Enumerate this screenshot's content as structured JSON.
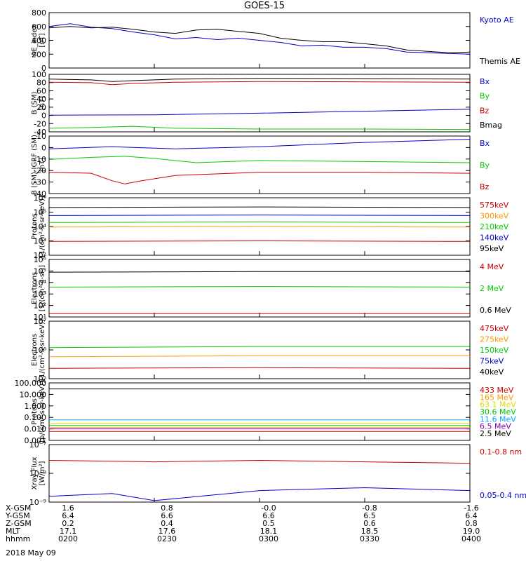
{
  "title": "GOES-15",
  "date_label": "2018 May 09",
  "ephemeris": {
    "rows": [
      {
        "label": "X-GSM",
        "values": [
          "1.6",
          "0.8",
          "-0.0",
          "-0.8",
          "-1.6"
        ]
      },
      {
        "label": "Y-GSM",
        "values": [
          "6.4",
          "6.6",
          "6.6",
          "6.5",
          "6.4"
        ]
      },
      {
        "label": "Z-GSM",
        "values": [
          "0.2",
          "0.4",
          "0.5",
          "0.6",
          "0.8"
        ]
      },
      {
        "label": "MLT",
        "values": [
          "17.1",
          "17.6",
          "18.1",
          "18.5",
          "19.0"
        ]
      },
      {
        "label": "hhmm",
        "values": [
          "0200",
          "0230",
          "0300",
          "0330",
          "0400"
        ]
      }
    ]
  },
  "chart_data": [
    {
      "type": "line",
      "ylabel": "AE_index",
      "yunit": "[nT]",
      "ylim": [
        0,
        800
      ],
      "scale": "linear",
      "yticks": [
        "0",
        "200",
        "400",
        "600",
        "800"
      ],
      "x": [
        "0200",
        "0230",
        "0300",
        "0330",
        "0400"
      ],
      "series": [
        {
          "name": "Kyoto AE",
          "color": "#0000cc",
          "points": [
            [
              0,
              600
            ],
            [
              0.05,
              640
            ],
            [
              0.1,
              590
            ],
            [
              0.15,
              570
            ],
            [
              0.2,
              520
            ],
            [
              0.25,
              480
            ],
            [
              0.3,
              420
            ],
            [
              0.35,
              440
            ],
            [
              0.4,
              410
            ],
            [
              0.45,
              430
            ],
            [
              0.5,
              400
            ],
            [
              0.55,
              370
            ],
            [
              0.6,
              320
            ],
            [
              0.65,
              330
            ],
            [
              0.7,
              300
            ],
            [
              0.75,
              300
            ],
            [
              0.8,
              280
            ],
            [
              0.85,
              230
            ],
            [
              0.9,
              220
            ],
            [
              0.95,
              210
            ],
            [
              1,
              200
            ]
          ]
        },
        {
          "name": "Themis AE",
          "color": "#000000",
          "points": [
            [
              0,
              580
            ],
            [
              0.05,
              600
            ],
            [
              0.1,
              580
            ],
            [
              0.15,
              590
            ],
            [
              0.2,
              560
            ],
            [
              0.25,
              520
            ],
            [
              0.3,
              500
            ],
            [
              0.35,
              550
            ],
            [
              0.4,
              560
            ],
            [
              0.45,
              530
            ],
            [
              0.5,
              500
            ],
            [
              0.55,
              430
            ],
            [
              0.6,
              400
            ],
            [
              0.65,
              380
            ],
            [
              0.7,
              380
            ],
            [
              0.75,
              350
            ],
            [
              0.8,
              320
            ],
            [
              0.85,
              260
            ],
            [
              0.9,
              240
            ],
            [
              0.95,
              220
            ],
            [
              1,
              230
            ]
          ]
        }
      ]
    },
    {
      "type": "line",
      "ylabel": "B (SM)",
      "yunit": "[nT]",
      "ylim": [
        -45,
        100
      ],
      "scale": "linear",
      "yticks": [
        "-40",
        "-20",
        "0",
        "20",
        "40",
        "60",
        "80",
        "100"
      ],
      "x": [
        "0200",
        "0230",
        "0300",
        "0330",
        "0400"
      ],
      "series": [
        {
          "name": "Bx",
          "color": "#0000cc",
          "points": [
            [
              0,
              -3
            ],
            [
              0.25,
              -2
            ],
            [
              0.5,
              2
            ],
            [
              0.75,
              7
            ],
            [
              1,
              12
            ]
          ]
        },
        {
          "name": "By",
          "color": "#00cc00",
          "points": [
            [
              0,
              -36
            ],
            [
              0.1,
              -34
            ],
            [
              0.2,
              -31
            ],
            [
              0.3,
              -36
            ],
            [
              0.5,
              -38
            ],
            [
              0.75,
              -38
            ],
            [
              1,
              -39
            ]
          ]
        },
        {
          "name": "Bz",
          "color": "#cc0000",
          "points": [
            [
              0,
              80
            ],
            [
              0.1,
              79
            ],
            [
              0.15,
              74
            ],
            [
              0.2,
              77
            ],
            [
              0.3,
              80
            ],
            [
              0.5,
              82
            ],
            [
              0.75,
              81
            ],
            [
              1,
              80
            ]
          ]
        },
        {
          "name": "Bmag",
          "color": "#000000",
          "points": [
            [
              0,
              88
            ],
            [
              0.1,
              86
            ],
            [
              0.15,
              82
            ],
            [
              0.2,
              84
            ],
            [
              0.3,
              88
            ],
            [
              0.5,
              90
            ],
            [
              0.75,
              89
            ],
            [
              1,
              88
            ]
          ]
        }
      ]
    },
    {
      "type": "line",
      "ylabel": "B (SM)-IGRF (SM)",
      "yunit": "[nT]",
      "ylim": [
        -42,
        12
      ],
      "scale": "linear",
      "yticks": [
        "-40",
        "-30",
        "-20",
        "-10",
        "0",
        "10"
      ],
      "x": [
        "0200",
        "0230",
        "0300",
        "0330",
        "0400"
      ],
      "series": [
        {
          "name": "Bx",
          "color": "#0000cc",
          "points": [
            [
              0,
              0
            ],
            [
              0.15,
              2
            ],
            [
              0.3,
              0
            ],
            [
              0.5,
              2
            ],
            [
              0.75,
              6
            ],
            [
              1,
              9
            ]
          ]
        },
        {
          "name": "By",
          "color": "#00cc00",
          "points": [
            [
              0,
              -10
            ],
            [
              0.1,
              -8
            ],
            [
              0.18,
              -7
            ],
            [
              0.25,
              -9
            ],
            [
              0.35,
              -13
            ],
            [
              0.5,
              -11
            ],
            [
              0.75,
              -12
            ],
            [
              1,
              -13
            ]
          ]
        },
        {
          "name": "Bz",
          "color": "#cc0000",
          "points": [
            [
              0,
              -22
            ],
            [
              0.1,
              -23
            ],
            [
              0.15,
              -30
            ],
            [
              0.18,
              -33
            ],
            [
              0.22,
              -30
            ],
            [
              0.3,
              -25
            ],
            [
              0.5,
              -22
            ],
            [
              0.75,
              -22
            ],
            [
              1,
              -23
            ]
          ]
        }
      ]
    },
    {
      "type": "line",
      "ylabel": "Protons",
      "yunit": "[1/(cm²-s-sr-keV)]",
      "ylim": [
        1,
        6
      ],
      "scale": "log10",
      "yticks": [
        "10²",
        "10³",
        "10⁴",
        "10⁵",
        "10⁶"
      ],
      "x": [
        "0200",
        "0230",
        "0300",
        "0330",
        "0400"
      ],
      "series": [
        {
          "name": "575keV",
          "color": "#cc0000",
          "points": [
            [
              0,
              2.2
            ],
            [
              0.5,
              2.25
            ],
            [
              1,
              2.2
            ]
          ]
        },
        {
          "name": "300keV",
          "color": "#ff9900",
          "points": [
            [
              0,
              3.45
            ],
            [
              0.5,
              3.5
            ],
            [
              1,
              3.45
            ]
          ]
        },
        {
          "name": "210keV",
          "color": "#00cc00",
          "points": [
            [
              0,
              3.85
            ],
            [
              0.5,
              3.9
            ],
            [
              1,
              3.85
            ]
          ]
        },
        {
          "name": "140keV",
          "color": "#0000cc",
          "points": [
            [
              0,
              4.45
            ],
            [
              0.5,
              4.5
            ],
            [
              1,
              4.45
            ]
          ]
        },
        {
          "name": "95keV",
          "color": "#000000",
          "points": [
            [
              0,
              5.15
            ],
            [
              0.5,
              5.2
            ],
            [
              1,
              5.15
            ]
          ]
        }
      ]
    },
    {
      "type": "line",
      "ylabel": "Electrons",
      "yunit": "[1/(cm²-s-sr)]",
      "ylim": [
        0.8,
        6
      ],
      "scale": "log10",
      "yticks": [
        "10¹",
        "10²",
        "10³",
        "10⁴",
        "10⁵",
        "10⁶"
      ],
      "x": [
        "0200",
        "0230",
        "0300",
        "0330",
        "0400"
      ],
      "series": [
        {
          "name": "4 MeV",
          "color": "#cc0000",
          "points": [
            [
              0,
              1.1
            ],
            [
              0.5,
              1.1
            ],
            [
              1,
              1.1
            ]
          ]
        },
        {
          "name": "2 MeV",
          "color": "#00cc00",
          "points": [
            [
              0,
              3.5
            ],
            [
              0.5,
              3.55
            ],
            [
              1,
              3.5
            ]
          ]
        },
        {
          "name": "0.6 MeV",
          "color": "#000000",
          "points": [
            [
              0,
              4.85
            ],
            [
              0.5,
              4.9
            ],
            [
              1,
              4.9
            ]
          ]
        }
      ]
    },
    {
      "type": "line",
      "ylabel": "Electrons",
      "yunit": "[1/(cm²-s-sr-keV)]",
      "ylim": [
        4.5,
        7
      ],
      "scale": "log10",
      "yticks": [
        "10⁵",
        "10⁶",
        "10⁷"
      ],
      "x": [
        "0200",
        "0230",
        "0300",
        "0330",
        "0400"
      ],
      "series": [
        {
          "name": "475keV",
          "color": "#cc0000",
          "points": [
            [
              0,
              4.95
            ],
            [
              0.5,
              4.98
            ],
            [
              1,
              4.95
            ]
          ]
        },
        {
          "name": "275keV",
          "color": "#ff9900",
          "points": [
            [
              0,
              5.45
            ],
            [
              0.5,
              5.5
            ],
            [
              1,
              5.5
            ]
          ]
        },
        {
          "name": "150keV",
          "color": "#00cc00",
          "points": [
            [
              0,
              5.85
            ],
            [
              0.5,
              5.9
            ],
            [
              1,
              5.9
            ]
          ]
        },
        {
          "name": "75keV",
          "color": "#0000cc",
          "points": []
        },
        {
          "name": "40keV",
          "color": "#000000",
          "points": []
        }
      ]
    },
    {
      "type": "line",
      "ylabel": "Protons",
      "yunit": "[p/(cm²-s-sr-keV)]",
      "ylim": [
        0.001,
        100
      ],
      "scale": "log10",
      "yticks": [
        "0.001",
        "0.010",
        "0.100",
        "1.000",
        "10.000",
        "100.000"
      ],
      "x": [
        "0200",
        "0230",
        "0300",
        "0330",
        "0400"
      ],
      "series": [
        {
          "name": "433 MeV",
          "color": "#cc0000",
          "points": [
            [
              0,
              0.006
            ],
            [
              0.5,
              0.006
            ],
            [
              1,
              0.006
            ]
          ]
        },
        {
          "name": "165 MeV",
          "color": "#ff9900",
          "points": [
            [
              0,
              0.013
            ],
            [
              0.5,
              0.013
            ],
            [
              1,
              0.013
            ]
          ]
        },
        {
          "name": "63.1 MeV",
          "color": "#dddd00",
          "points": [
            [
              0,
              0.03
            ],
            [
              0.5,
              0.03
            ],
            [
              1,
              0.03
            ]
          ]
        },
        {
          "name": "30.6 MeV",
          "color": "#00cc00",
          "points": [
            [
              0,
              0.02
            ],
            [
              0.5,
              0.02
            ],
            [
              1,
              0.02
            ]
          ]
        },
        {
          "name": "11.6 MeV",
          "color": "#00aaff",
          "points": [
            [
              0,
              0.06
            ],
            [
              0.5,
              0.06
            ],
            [
              1,
              0.06
            ]
          ]
        },
        {
          "name": "6.5 MeV",
          "color": "#8800aa",
          "points": [
            [
              0,
              0.01
            ],
            [
              0.5,
              0.01
            ],
            [
              1,
              0.01
            ]
          ]
        },
        {
          "name": "2.5 MeV",
          "color": "#000000",
          "points": [
            [
              0,
              30
            ],
            [
              0.5,
              30
            ],
            [
              1,
              30
            ]
          ]
        }
      ]
    },
    {
      "type": "line",
      "ylabel": "Xray Flux",
      "yunit": "[W/m²]",
      "ylim": [
        -9,
        -7
      ],
      "scale": "log10",
      "yticks": [
        "10⁻⁹",
        "10⁻⁸",
        "10⁻⁷"
      ],
      "x": [
        "0200",
        "0230",
        "0300",
        "0330",
        "0400"
      ],
      "series": [
        {
          "name": "0.1-0.8 nm",
          "color": "#cc0000",
          "points": [
            [
              0,
              -7.55
            ],
            [
              0.25,
              -7.6
            ],
            [
              0.5,
              -7.55
            ],
            [
              0.75,
              -7.6
            ],
            [
              1,
              -7.65
            ]
          ]
        },
        {
          "name": "0.05-0.4 nm",
          "color": "#0000cc",
          "points": [
            [
              0,
              -8.8
            ],
            [
              0.15,
              -8.7
            ],
            [
              0.25,
              -8.95
            ],
            [
              0.5,
              -8.6
            ],
            [
              0.75,
              -8.5
            ],
            [
              1,
              -8.6
            ]
          ]
        }
      ]
    }
  ]
}
